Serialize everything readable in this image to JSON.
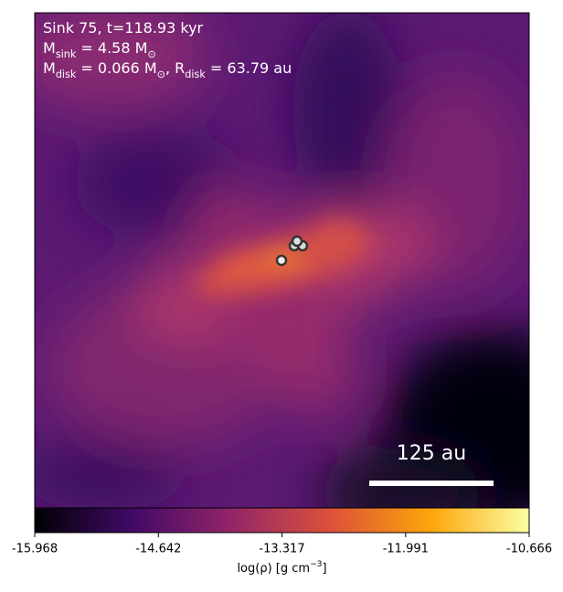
{
  "chart_data": {
    "type": "density-map",
    "annotations": [
      [
        {
          "t": "Sink 75, t=118.93 kyr"
        }
      ],
      [
        {
          "t": "M"
        },
        {
          "sub": "sink"
        },
        {
          "t": " = 4.58 M"
        },
        {
          "sub": "⊙"
        }
      ],
      [
        {
          "t": "M"
        },
        {
          "sub": "disk"
        },
        {
          "t": " = 0.066 M"
        },
        {
          "sub": "⊙"
        },
        {
          "t": ", R"
        },
        {
          "sub": "disk"
        },
        {
          "t": " = 63.79 au"
        }
      ]
    ],
    "scale_bar": "125 au",
    "colorbar": {
      "label": [
        {
          "t": "log(ρ) [g cm"
        },
        {
          "sup": "−3"
        },
        {
          "t": "]"
        }
      ],
      "lim": [
        -15.968,
        -10.666
      ],
      "ticks": [
        -15.968,
        -14.642,
        -13.317,
        -11.991,
        -10.666
      ],
      "colors": [
        "#000004",
        "#420a68",
        "#932667",
        "#dd513a",
        "#fca50a",
        "#fcffa4"
      ]
    }
  }
}
